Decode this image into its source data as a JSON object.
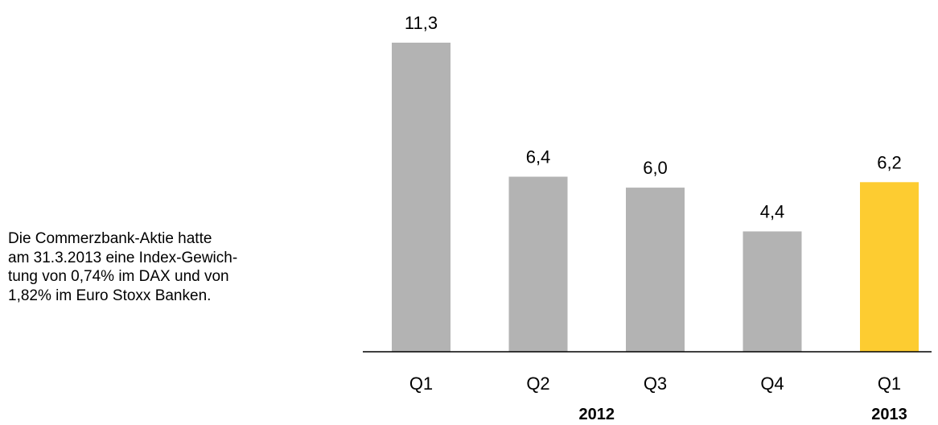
{
  "note": {
    "lines": [
      "Die Commerzbank-Aktie hatte",
      "am 31.3.2013 eine Index-Gewich-",
      "tung von 0,74% im DAX und von",
      "1,82% im Euro Stoxx Banken."
    ]
  },
  "colors": {
    "bar_default": "#b3b3b3",
    "bar_highlight": "#fdcc31",
    "axis": "#000000"
  },
  "chart_data": {
    "type": "bar",
    "categories": [
      "Q1",
      "Q2",
      "Q3",
      "Q4",
      "Q1"
    ],
    "values": [
      11.3,
      6.4,
      6.0,
      4.4,
      6.2
    ],
    "value_labels": [
      "11,3",
      "6,4",
      "6,0",
      "4,4",
      "6,2"
    ],
    "highlight_index": 4,
    "groups": [
      {
        "label": "2012",
        "categories": [
          0,
          1,
          2,
          3
        ]
      },
      {
        "label": "2013",
        "categories": [
          4
        ]
      }
    ],
    "ylim": [
      0,
      11.3
    ],
    "grid": false,
    "legend": "none"
  }
}
